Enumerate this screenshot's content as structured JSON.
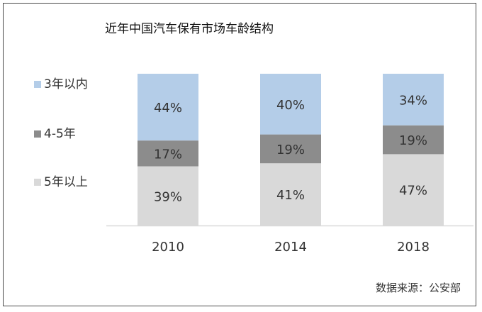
{
  "chart_data": {
    "type": "bar",
    "stacked": true,
    "title": "近年中国汽车保有市场车龄结构",
    "categories": [
      "2010",
      "2014",
      "2018"
    ],
    "series": [
      {
        "name": "5年以上",
        "values": [
          39,
          41,
          47
        ],
        "labels": [
          "39%",
          "41%",
          "47%"
        ],
        "color": "#d9d9d9"
      },
      {
        "name": "4-5年",
        "values": [
          17,
          19,
          19
        ],
        "labels": [
          "17%",
          "19%",
          "19%"
        ],
        "color": "#8c8c8c"
      },
      {
        "name": "3年以内",
        "values": [
          44,
          40,
          34
        ],
        "labels": [
          "44%",
          "40%",
          "34%"
        ],
        "color": "#b4cde8"
      }
    ],
    "legend_order": [
      "3年以内",
      "4-5年",
      "5年以上"
    ],
    "legend_position": "left",
    "ylim": [
      0,
      100
    ],
    "grid": false,
    "axis_color": "#d9d9d9"
  },
  "source": "数据来源：公安部"
}
